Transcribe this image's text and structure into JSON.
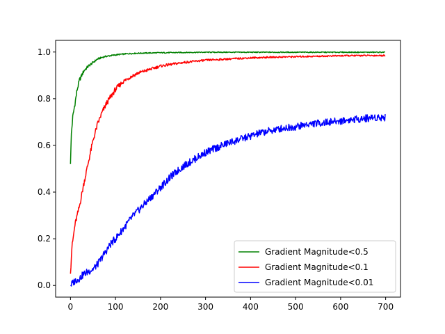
{
  "chart_data": {
    "type": "line",
    "title": "",
    "xlabel": "",
    "ylabel": "",
    "xlim": [
      -33,
      733
    ],
    "ylim": [
      -0.05,
      1.05
    ],
    "x_ticks": [
      0,
      100,
      200,
      300,
      400,
      500,
      600,
      700
    ],
    "x_tick_labels": [
      "0",
      "100",
      "200",
      "300",
      "400",
      "500",
      "600",
      "700"
    ],
    "y_ticks": [
      0.0,
      0.2,
      0.4,
      0.6,
      0.8,
      1.0
    ],
    "y_tick_labels": [
      "0.0",
      "0.2",
      "0.4",
      "0.6",
      "0.8",
      "1.0"
    ],
    "grid": false,
    "legend_position": "lower-right",
    "series": [
      {
        "name": "Gradient Magnitude<0.5",
        "color": "#008000",
        "x": [
          0,
          2,
          5,
          10,
          15,
          20,
          30,
          40,
          50,
          60,
          75,
          90,
          110,
          130,
          150,
          200,
          250,
          300,
          400,
          500,
          600,
          699
        ],
        "y": [
          0.52,
          0.65,
          0.72,
          0.78,
          0.84,
          0.88,
          0.92,
          0.94,
          0.955,
          0.97,
          0.98,
          0.985,
          0.99,
          0.993,
          0.995,
          0.997,
          0.998,
          0.999,
          0.999,
          0.999,
          0.999,
          0.999
        ]
      },
      {
        "name": "Gradient Magnitude<0.1",
        "color": "#ff0000",
        "x": [
          0,
          3,
          10,
          20,
          30,
          40,
          50,
          60,
          70,
          80,
          90,
          100,
          115,
          130,
          150,
          175,
          200,
          250,
          300,
          350,
          400,
          450,
          500,
          550,
          600,
          650,
          699
        ],
        "y": [
          0.05,
          0.16,
          0.26,
          0.34,
          0.44,
          0.53,
          0.62,
          0.69,
          0.74,
          0.78,
          0.81,
          0.84,
          0.87,
          0.89,
          0.91,
          0.925,
          0.94,
          0.955,
          0.965,
          0.97,
          0.975,
          0.978,
          0.98,
          0.982,
          0.984,
          0.985,
          0.985
        ]
      },
      {
        "name": "Gradient Magnitude<0.01",
        "color": "#0000ff",
        "x": [
          0,
          10,
          20,
          30,
          40,
          50,
          60,
          70,
          80,
          90,
          100,
          120,
          140,
          160,
          180,
          200,
          225,
          250,
          275,
          300,
          325,
          350,
          375,
          400,
          425,
          450,
          475,
          500,
          525,
          550,
          575,
          600,
          625,
          650,
          675,
          699
        ],
        "y": [
          0.0,
          0.02,
          0.03,
          0.05,
          0.06,
          0.07,
          0.09,
          0.12,
          0.15,
          0.18,
          0.2,
          0.25,
          0.3,
          0.34,
          0.38,
          0.42,
          0.47,
          0.51,
          0.54,
          0.57,
          0.59,
          0.61,
          0.625,
          0.64,
          0.655,
          0.665,
          0.675,
          0.68,
          0.69,
          0.695,
          0.7,
          0.705,
          0.71,
          0.715,
          0.72,
          0.72
        ]
      }
    ]
  }
}
